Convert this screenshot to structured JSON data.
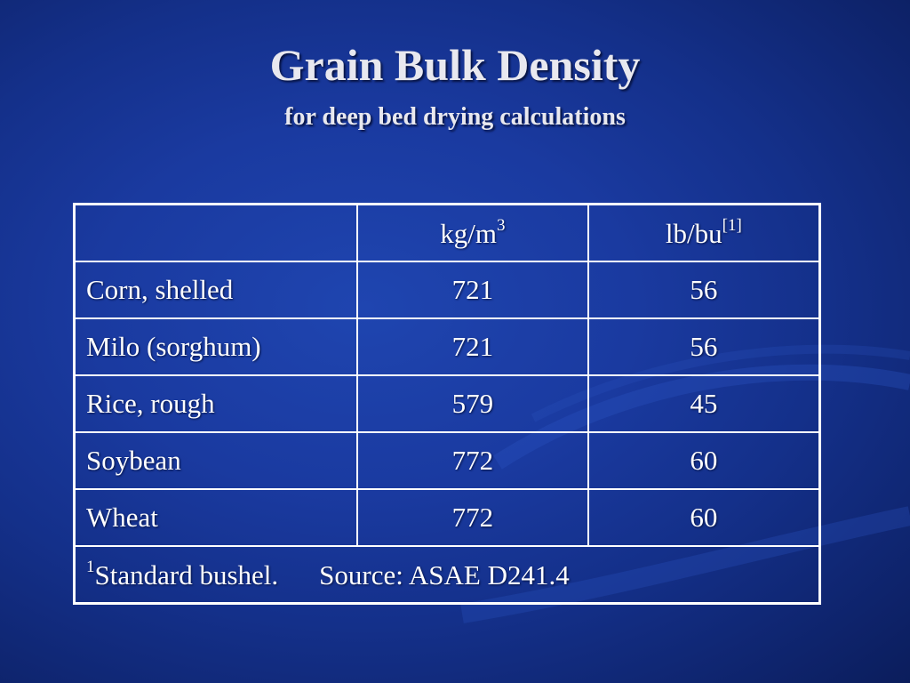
{
  "title": "Grain Bulk Density",
  "subtitle": "for deep bed drying calculations",
  "table": {
    "headers": [
      {
        "text": "",
        "sup": ""
      },
      {
        "text": "kg/m",
        "sup": "3"
      },
      {
        "text": "lb/bu",
        "sup": "[1]"
      }
    ],
    "rows": [
      {
        "grain": "Corn, shelled",
        "kg_m3": "721",
        "lb_bu": "56"
      },
      {
        "grain": "Milo (sorghum)",
        "kg_m3": "721",
        "lb_bu": "56"
      },
      {
        "grain": "Rice, rough",
        "kg_m3": "579",
        "lb_bu": "45"
      },
      {
        "grain": "Soybean",
        "kg_m3": "772",
        "lb_bu": "60"
      },
      {
        "grain": "Wheat",
        "kg_m3": "772",
        "lb_bu": "60"
      }
    ],
    "footnote": {
      "marker": "1",
      "note": "Standard bushel.",
      "source": "Source: ASAE D241.4"
    }
  }
}
